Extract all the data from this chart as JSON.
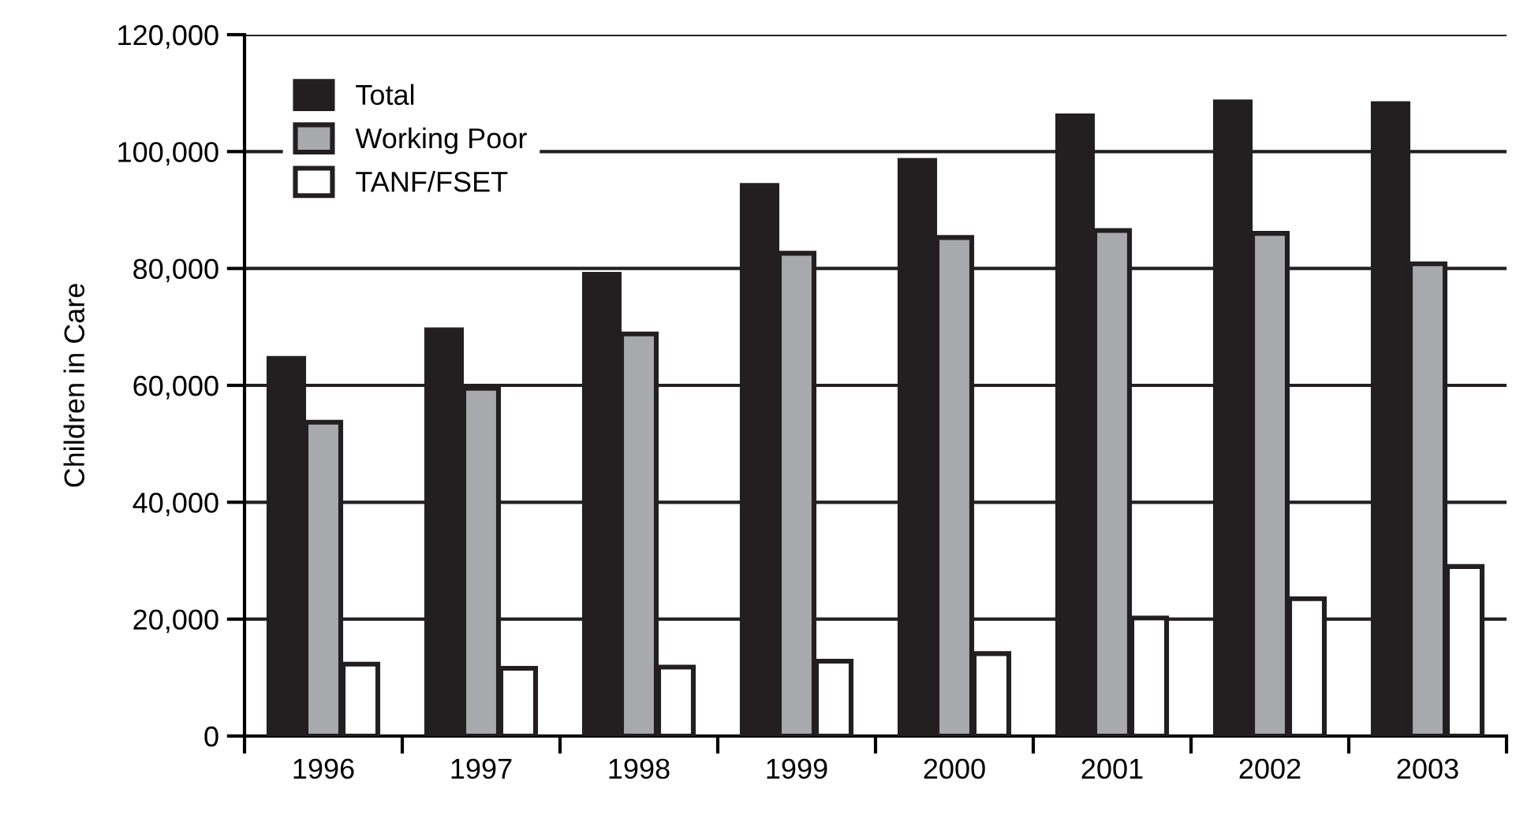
{
  "chart_data": {
    "type": "bar",
    "ylabel": "Children in Care",
    "categories": [
      "1996",
      "1997",
      "1998",
      "1999",
      "2000",
      "2001",
      "2002",
      "2003"
    ],
    "series": [
      {
        "name": "Total",
        "color": "#231f20",
        "values": [
          64600,
          69500,
          79000,
          94200,
          98500,
          106100,
          108500,
          108200
        ]
      },
      {
        "name": "Working Poor",
        "color": "#a7a9ac",
        "values": [
          53700,
          59500,
          68800,
          82600,
          85300,
          86500,
          86000,
          80800
        ]
      },
      {
        "name": "TANF/FSET",
        "color": "#ffffff",
        "values": [
          12300,
          11600,
          11800,
          12800,
          14100,
          20200,
          23500,
          29000
        ]
      }
    ],
    "ylim": [
      0,
      120000
    ],
    "yticks": [
      {
        "value": 0,
        "label": "0"
      },
      {
        "value": 20000,
        "label": "20,000"
      },
      {
        "value": 40000,
        "label": "40,000"
      },
      {
        "value": 60000,
        "label": "60,000"
      },
      {
        "value": 80000,
        "label": "80,000"
      },
      {
        "value": 100000,
        "label": "100,000"
      },
      {
        "value": 120000,
        "label": "120,000"
      }
    ],
    "grid": "y",
    "legend": "top left"
  }
}
